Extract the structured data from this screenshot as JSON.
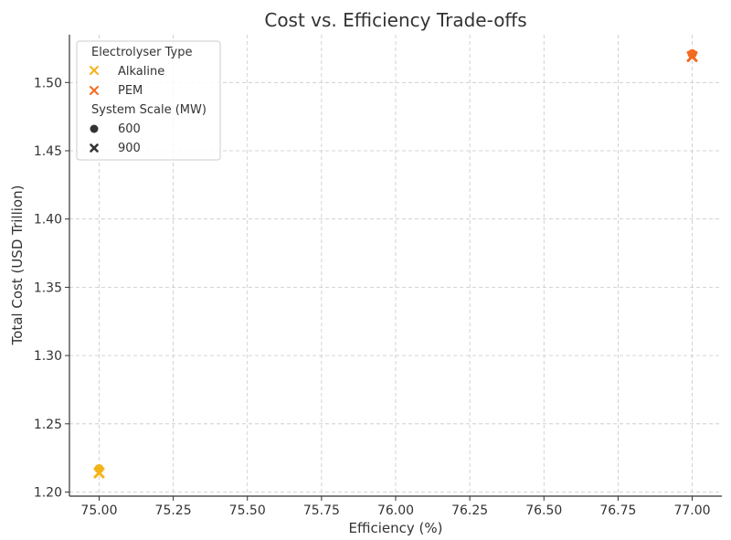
{
  "chart_data": {
    "type": "scatter",
    "title": "Cost vs. Efficiency Trade-offs",
    "xlabel": "Efficiency (%)",
    "ylabel": "Total Cost (USD Trillion)",
    "xlim": [
      74.9,
      77.1
    ],
    "ylim": [
      1.197,
      1.535
    ],
    "xticks": [
      75.0,
      75.25,
      75.5,
      75.75,
      76.0,
      76.25,
      76.5,
      76.75,
      77.0
    ],
    "xtick_labels": [
      "75.00",
      "75.25",
      "75.50",
      "75.75",
      "76.00",
      "76.25",
      "76.50",
      "76.75",
      "77.00"
    ],
    "yticks": [
      1.2,
      1.25,
      1.3,
      1.35,
      1.4,
      1.45,
      1.5
    ],
    "ytick_labels": [
      "1.20",
      "1.25",
      "1.30",
      "1.35",
      "1.40",
      "1.45",
      "1.50"
    ],
    "grid": true,
    "legend_position": "top-left",
    "legend": {
      "hue_title": "Electrolyser Type",
      "hue_entries": [
        {
          "label": "Alkaline",
          "color": "#F5B31B"
        },
        {
          "label": "PEM",
          "color": "#F26B21"
        }
      ],
      "style_title": "System Scale (MW)",
      "style_entries": [
        {
          "label": "600",
          "marker": "circle"
        },
        {
          "label": "900",
          "marker": "x"
        }
      ]
    },
    "points": [
      {
        "type": "Alkaline",
        "scale": "600",
        "x": 75.0,
        "y": 1.217
      },
      {
        "type": "Alkaline",
        "scale": "900",
        "x": 75.0,
        "y": 1.214
      },
      {
        "type": "PEM",
        "scale": "600",
        "x": 77.0,
        "y": 1.521
      },
      {
        "type": "PEM",
        "scale": "900",
        "x": 77.0,
        "y": 1.519
      }
    ]
  }
}
